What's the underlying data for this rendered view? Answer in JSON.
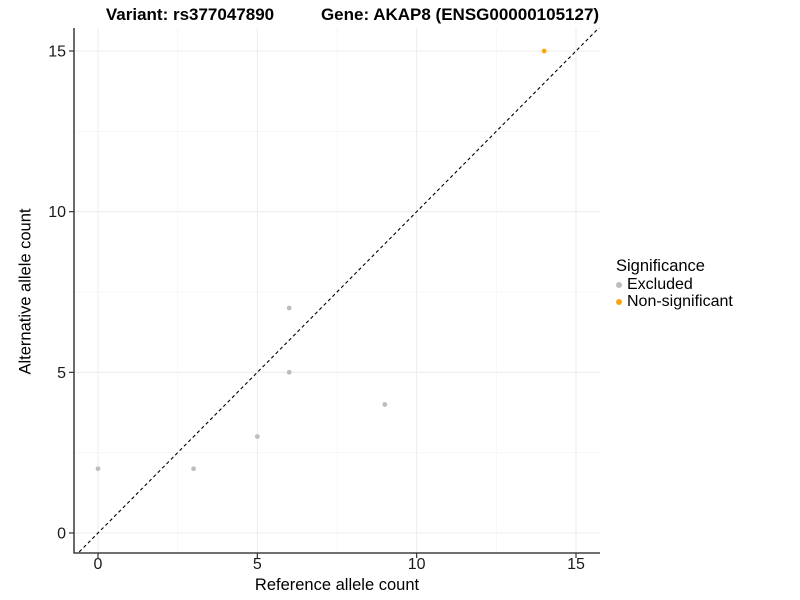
{
  "titles": {
    "variant": "Variant: rs377047890",
    "gene": "Gene: AKAP8 (ENSG00000105127)"
  },
  "chart_data": {
    "type": "scatter",
    "xlabel": "Reference allele count",
    "ylabel": "Alternative allele count",
    "xlim": [
      0,
      15
    ],
    "ylim": [
      0,
      15
    ],
    "xticks": [
      0,
      5,
      10,
      15
    ],
    "yticks": [
      0,
      5,
      10,
      15
    ],
    "xticks_minor": [
      2.5,
      7.5,
      12.5
    ],
    "yticks_minor": [
      2.5,
      7.5,
      12.5
    ],
    "grid": "major+minor",
    "identity_line": {
      "type": "y=x",
      "style": "dashed",
      "color": "#000000"
    },
    "legend": {
      "title": "Significance",
      "position": "right",
      "items": [
        {
          "label": "Excluded",
          "color": "#bdbdbd"
        },
        {
          "label": "Non-significant",
          "color": "#ffa510"
        }
      ]
    },
    "series": [
      {
        "name": "Excluded",
        "color": "#bdbdbd",
        "points": [
          [
            0,
            2
          ],
          [
            3,
            2
          ],
          [
            5,
            3
          ],
          [
            6,
            5
          ],
          [
            6,
            7
          ],
          [
            9,
            4
          ]
        ]
      },
      {
        "name": "Non-significant",
        "color": "#ffa510",
        "points": [
          [
            14,
            15
          ]
        ]
      }
    ],
    "colors": {
      "grid_major": "#ececec",
      "grid_minor": "#f5f5f5",
      "axis_line": "#1a1a1a",
      "tick_mark": "#333333",
      "tick_label": "#1a1a1a"
    }
  }
}
